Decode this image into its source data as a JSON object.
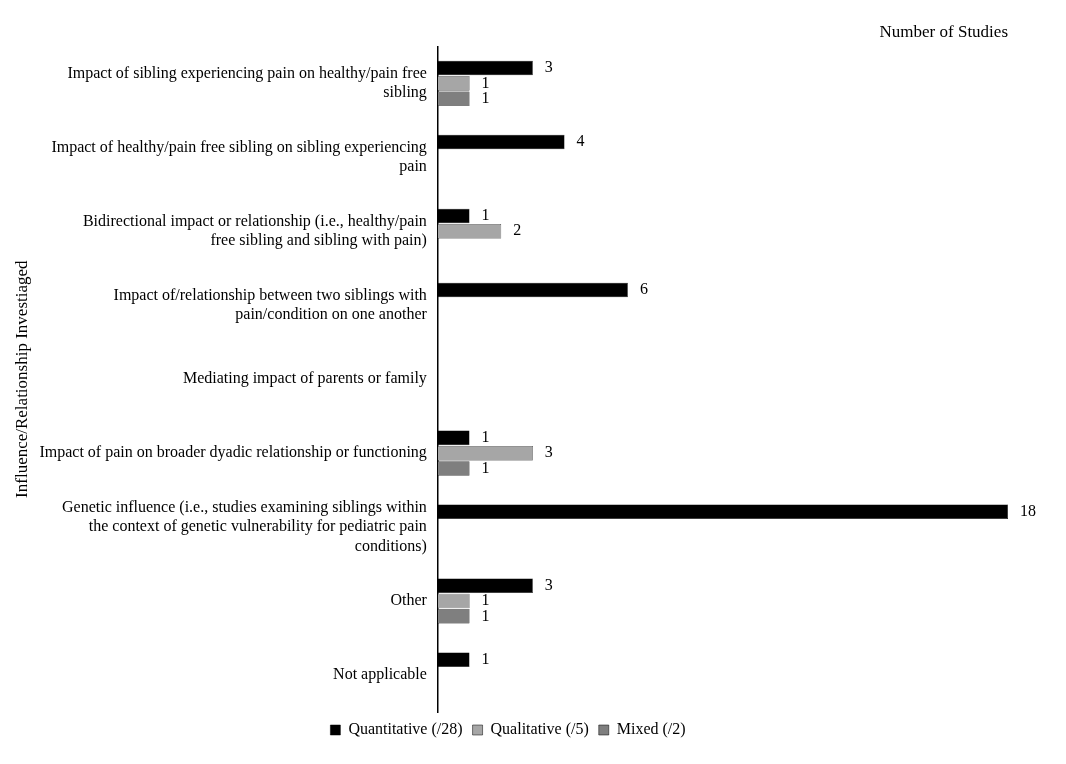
{
  "chart_data": {
    "type": "bar",
    "orientation": "horizontal",
    "xlabel": "Number of Studies",
    "ylabel": "Influence/Relationship Investiaged",
    "categories": [
      "Impact of sibling experiencing pain on healthy/pain free sibling",
      "Impact of healthy/pain free sibling on sibling experiencing pain",
      "Bidirectional impact or relationship (i.e., healthy/pain free sibling and sibling with pain)",
      "Impact of/relationship between two siblings with pain/condition on one another",
      "Mediating impact of parents or family",
      "Impact of pain on broader dyadic relationship or functioning",
      "Genetic influence (i.e., studies examining siblings within the context of genetic vulnerability for pediatric pain conditions)",
      "Other",
      "Not applicable"
    ],
    "series": [
      {
        "name": "Quantitative (/28)",
        "color": "#000000",
        "values": [
          3,
          4,
          1,
          6,
          null,
          1,
          18,
          3,
          1
        ]
      },
      {
        "name": "Qualitative (/5)",
        "color": "#a6a6a6",
        "values": [
          1,
          null,
          2,
          null,
          null,
          3,
          null,
          1,
          null
        ]
      },
      {
        "name": "Mixed (/2)",
        "color": "#7f7f7f",
        "values": [
          1,
          null,
          null,
          null,
          null,
          1,
          null,
          1,
          null
        ]
      }
    ],
    "data_labels": true,
    "legend": "bottom",
    "grid": false
  }
}
